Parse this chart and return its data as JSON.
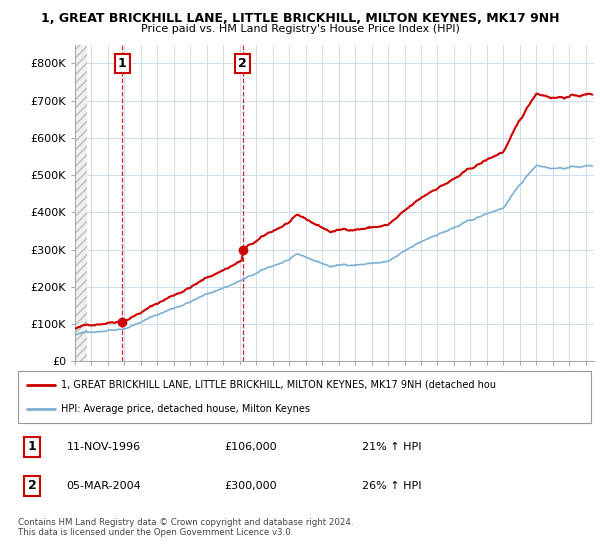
{
  "title_line1": "1, GREAT BRICKHILL LANE, LITTLE BRICKHILL, MILTON KEYNES, MK17 9NH",
  "title_line2": "Price paid vs. HM Land Registry's House Price Index (HPI)",
  "ylim": [
    0,
    850000
  ],
  "yticks": [
    0,
    100000,
    200000,
    300000,
    400000,
    500000,
    600000,
    700000,
    800000
  ],
  "ytick_labels": [
    "£0",
    "£100K",
    "£200K",
    "£300K",
    "£400K",
    "£500K",
    "£600K",
    "£700K",
    "£800K"
  ],
  "sale1_date": 1996.87,
  "sale1_price": 106000,
  "sale1_label": "1",
  "sale2_date": 2004.18,
  "sale2_price": 300000,
  "sale2_label": "2",
  "xstart": 1994,
  "xend": 2025.5,
  "xtick_start": 1994,
  "xtick_end": 2026,
  "legend_line1": "1, GREAT BRICKHILL LANE, LITTLE BRICKHILL, MILTON KEYNES, MK17 9NH (detached hou",
  "legend_line2": "HPI: Average price, detached house, Milton Keynes",
  "annotation1_date": "11-NOV-1996",
  "annotation1_price": "£106,000",
  "annotation1_hpi": "21% ↑ HPI",
  "annotation2_date": "05-MAR-2004",
  "annotation2_price": "£300,000",
  "annotation2_hpi": "26% ↑ HPI",
  "footer": "Contains HM Land Registry data © Crown copyright and database right 2024.\nThis data is licensed under the Open Government Licence v3.0.",
  "price_color": "#cc0000",
  "hpi_color": "#7bafd4",
  "hatch_end": 1994.7
}
